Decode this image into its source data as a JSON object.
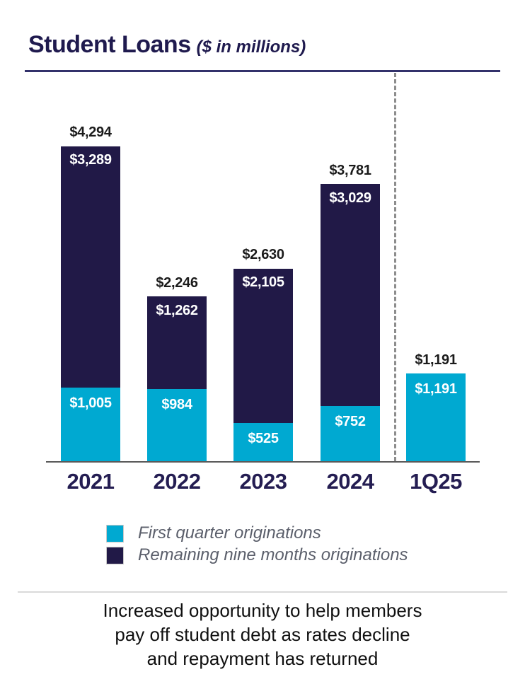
{
  "header": {
    "title": "Student Loans",
    "subtitle": "($ in millions)"
  },
  "chart_data": {
    "type": "bar",
    "stacked": true,
    "title": "Student Loans ($ in millions)",
    "categories": [
      "2021",
      "2022",
      "2023",
      "2024",
      "1Q25"
    ],
    "series": [
      {
        "name": "First quarter originations",
        "color": "#00a9d1",
        "values": [
          1005,
          984,
          525,
          752,
          1191
        ],
        "labels": [
          "$1,005",
          "$984",
          "$525",
          "$752",
          "$1,191"
        ]
      },
      {
        "name": "Remaining nine months originations",
        "color": "#211947",
        "values": [
          3289,
          1262,
          2105,
          3029,
          0
        ],
        "labels": [
          "$3,289",
          "$1,262",
          "$2,105",
          "$3,029",
          ""
        ]
      }
    ],
    "totals": [
      4294,
      2246,
      2630,
      3781,
      1191
    ],
    "total_labels": [
      "$4,294",
      "$2,246",
      "$2,630",
      "$3,781",
      "$1,191"
    ],
    "ylim": [
      0,
      5290
    ],
    "grid": false,
    "legend_position": "bottom",
    "separator_after_category": "2024"
  },
  "footer": {
    "lines": [
      "Increased opportunity to help members",
      "pay off student debt as rates decline",
      "and repayment has returned"
    ]
  },
  "colors": {
    "accent_cyan": "#00a9d1",
    "navy": "#211947",
    "title_navy": "#1f1a4e",
    "rule_navy": "#32316b",
    "axis_gray": "#5a5a5a",
    "dash_gray": "#8d8d8d",
    "legend_text": "#5b5f6b"
  }
}
